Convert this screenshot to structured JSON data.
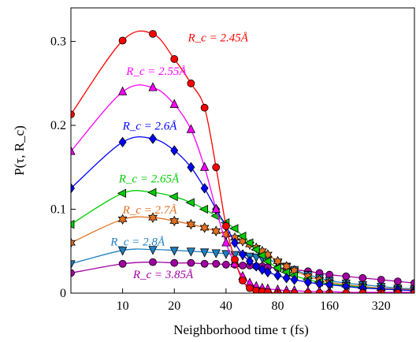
{
  "chart_data": {
    "type": "line",
    "title": "",
    "xlabel": "Neighborhood time τ (fs)",
    "ylabel": "P(τ, R_c)",
    "x_scale": "log2",
    "xlim": [
      5,
      500
    ],
    "ylim": [
      0,
      0.34
    ],
    "x_ticks": [
      10,
      20,
      40,
      80,
      160,
      320
    ],
    "y_ticks": [
      0,
      0.1,
      0.2,
      0.3
    ],
    "grid": false,
    "legend": "none",
    "x": [
      5,
      10,
      15,
      20,
      25,
      30,
      35,
      40,
      45,
      50,
      55,
      60,
      65,
      70,
      80,
      90,
      100,
      120,
      140,
      160,
      200,
      250,
      320,
      400,
      500
    ],
    "series": [
      {
        "name": "R_c = 2.45Å",
        "color": "#ff0000",
        "marker": "circle",
        "values": [
          0.213,
          0.301,
          0.309,
          0.279,
          0.25,
          0.221,
          0.15,
          0.08,
          0.04,
          0.015,
          0.006,
          0.003,
          0.002,
          0.001,
          0,
          0,
          0,
          0,
          0,
          0,
          0,
          0,
          0,
          0,
          0
        ]
      },
      {
        "name": "R_c = 2.55Å",
        "color": "#ff00ff",
        "marker": "triangle-up",
        "values": [
          0.169,
          0.24,
          0.245,
          0.225,
          0.195,
          0.15,
          0.1,
          0.06,
          0.035,
          0.02,
          0.012,
          0.008,
          0.006,
          0.005,
          0.004,
          0.003,
          0.003,
          0.002,
          0.002,
          0.002,
          0.001,
          0.001,
          0.001,
          0.001,
          0.001
        ]
      },
      {
        "name": "R_c = 2.6Å",
        "color": "#0000ff",
        "marker": "diamond",
        "values": [
          0.125,
          0.18,
          0.184,
          0.17,
          0.15,
          0.125,
          0.1,
          0.08,
          0.06,
          0.046,
          0.038,
          0.032,
          0.028,
          0.025,
          0.021,
          0.018,
          0.016,
          0.013,
          0.011,
          0.01,
          0.008,
          0.006,
          0.005,
          0.004,
          0.003
        ]
      },
      {
        "name": "R_c = 2.65Å",
        "color": "#00cc00",
        "marker": "triangle-left",
        "values": [
          0.082,
          0.119,
          0.12,
          0.115,
          0.108,
          0.1,
          0.092,
          0.084,
          0.077,
          0.068,
          0.06,
          0.052,
          0.045,
          0.038,
          0.03,
          0.025,
          0.021,
          0.016,
          0.013,
          0.011,
          0.009,
          0.007,
          0.005,
          0.004,
          0.003
        ]
      },
      {
        "name": "R_c = 2.7Å",
        "color": "#e07020",
        "marker": "hexagram",
        "values": [
          0.06,
          0.088,
          0.09,
          0.086,
          0.082,
          0.078,
          0.074,
          0.07,
          0.066,
          0.062,
          0.058,
          0.054,
          0.05,
          0.046,
          0.038,
          0.032,
          0.027,
          0.02,
          0.016,
          0.013,
          0.01,
          0.008,
          0.006,
          0.005,
          0.004
        ]
      },
      {
        "name": "R_c = 2.8Å",
        "color": "#2080c0",
        "marker": "triangle-down",
        "values": [
          0.035,
          0.051,
          0.052,
          0.051,
          0.05,
          0.049,
          0.048,
          0.047,
          0.046,
          0.045,
          0.044,
          0.043,
          0.042,
          0.04,
          0.036,
          0.032,
          0.028,
          0.022,
          0.018,
          0.015,
          0.012,
          0.01,
          0.008,
          0.006,
          0.005
        ]
      },
      {
        "name": "R_c = 3.85Å",
        "color": "#a000a0",
        "marker": "circle",
        "values": [
          0.024,
          0.035,
          0.037,
          0.036,
          0.036,
          0.035,
          0.035,
          0.034,
          0.034,
          0.033,
          0.033,
          0.032,
          0.032,
          0.031,
          0.03,
          0.029,
          0.028,
          0.026,
          0.024,
          0.022,
          0.02,
          0.018,
          0.016,
          0.014,
          0.012
        ]
      }
    ],
    "annotations": [
      {
        "text": "R_c = 2.45Å",
        "series": 0,
        "x": 24,
        "y": 0.3
      },
      {
        "text": "R_c = 2.55Å",
        "series": 1,
        "x": 10.5,
        "y": 0.26
      },
      {
        "text": "R_c = 2.6Å",
        "series": 2,
        "x": 10,
        "y": 0.195
      },
      {
        "text": "R_c = 2.65Å",
        "series": 3,
        "x": 9.5,
        "y": 0.132
      },
      {
        "text": "R_c = 2.7Å",
        "series": 4,
        "x": 10,
        "y": 0.095
      },
      {
        "text": "R_c = 2.8Å",
        "series": 5,
        "x": 8.5,
        "y": 0.057
      },
      {
        "text": "R_c = 3.85Å",
        "series": 6,
        "x": 11.5,
        "y": 0.018
      }
    ]
  }
}
